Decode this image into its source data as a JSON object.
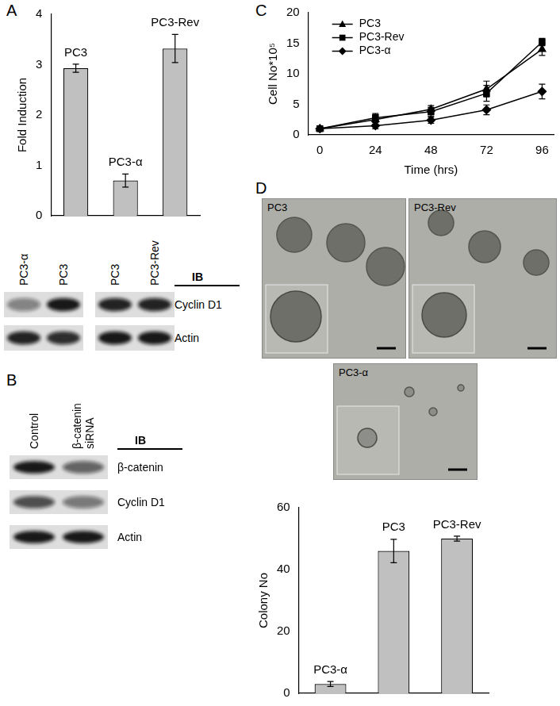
{
  "panel_labels": [
    "A",
    "B",
    "C",
    "D"
  ],
  "chart_data": [
    {
      "type": "bar",
      "categories": [
        "PC3",
        "PC3-α",
        "PC3-Rev"
      ],
      "values": [
        2.93,
        0.7,
        3.32
      ],
      "errors": [
        0.08,
        0.13,
        0.28
      ],
      "y_label": "Fold Induction",
      "ylim": [
        0,
        4
      ],
      "yticks": [
        0,
        1,
        2,
        3,
        4
      ],
      "color": "#c0c0c0",
      "grid": false,
      "tick_labels": "y"
    },
    {
      "type": "line",
      "x": [
        0,
        24,
        48,
        72,
        96
      ],
      "x_label": "Time (hrs)",
      "y_label": "Cell No*10⁵",
      "xlim": [
        -5,
        101
      ],
      "xticks": [
        0,
        24,
        48,
        72,
        96
      ],
      "ylim": [
        0,
        20
      ],
      "yticks": [
        0,
        5,
        10,
        15,
        20
      ],
      "grid": false,
      "legend": "upper left",
      "series": [
        {
          "name": "PC3",
          "color": "#000000",
          "marker": "triangle",
          "values": [
            1,
            2.5,
            4.2,
            7.5,
            14
          ],
          "errors": [
            0.2,
            0.8,
            0.6,
            1.3,
            1.0
          ]
        },
        {
          "name": "PC3-Rev",
          "color": "#000000",
          "marker": "square",
          "values": [
            1,
            2.8,
            3.8,
            6.8,
            15.2
          ],
          "errors": [
            0.2,
            0.7,
            0.7,
            1.3,
            0.6
          ]
        },
        {
          "name": "PC3-α",
          "color": "#000000",
          "marker": "diamond",
          "values": [
            1,
            1.5,
            2.4,
            4.1,
            7.1
          ],
          "errors": [
            0.2,
            0.5,
            0.5,
            0.8,
            1.2
          ]
        }
      ]
    },
    {
      "type": "bar",
      "categories": [
        "PC3-α",
        "PC3",
        "PC3-Rev"
      ],
      "values": [
        3,
        46,
        50
      ],
      "errors": [
        0.8,
        3.8,
        0.8
      ],
      "y_label": "Colony No",
      "ylim": [
        0,
        60
      ],
      "yticks": [
        0,
        20,
        40,
        60
      ],
      "color": "#c0c0c0",
      "grid": false,
      "tick_labels": "y"
    }
  ],
  "blots": [
    {
      "header": "IB",
      "rows": [
        "Cyclin D1",
        "Actin"
      ],
      "groups": [
        {
          "lanes": [
            "PC3-α",
            "PC3"
          ],
          "intensity": [
            [
              0.45,
              0.95
            ],
            [
              0.9,
              0.85
            ]
          ]
        },
        {
          "lanes": [
            "PC3",
            "PC3-Rev"
          ],
          "intensity": [
            [
              0.9,
              0.9
            ],
            [
              0.95,
              0.95
            ]
          ]
        }
      ]
    },
    {
      "header": "IB",
      "rows": [
        "β-catenin",
        "Cyclin D1",
        "Actin"
      ],
      "groups": [
        {
          "lanes": [
            "Control",
            "β-catenin siRNA"
          ],
          "intensity": [
            [
              0.95,
              0.6
            ],
            [
              0.7,
              0.5
            ],
            [
              0.95,
              0.95
            ]
          ]
        }
      ]
    }
  ],
  "micrographs": [
    "PC3",
    "PC3-Rev",
    "PC3-α"
  ]
}
